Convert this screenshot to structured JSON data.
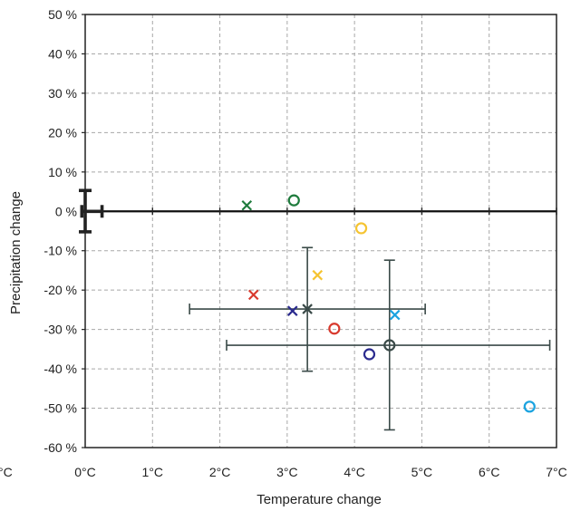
{
  "chart_data": {
    "type": "scatter",
    "title": "",
    "xlabel": "Temperature change",
    "ylabel": "Precipitation change",
    "xlim": [
      0,
      7
    ],
    "ylim": [
      -60,
      50
    ],
    "x_ticks": [
      0,
      1,
      2,
      3,
      4,
      5,
      6,
      7
    ],
    "x_tick_labels": [
      "0°C",
      "1°C",
      "2°C",
      "3°C",
      "4°C",
      "5°C",
      "6°C",
      "7°C"
    ],
    "y_ticks": [
      50,
      40,
      30,
      20,
      10,
      0,
      -10,
      -20,
      -30,
      -40,
      -50,
      -60
    ],
    "y_tick_labels": [
      "50 %",
      "40 %",
      "30 %",
      "20 %",
      "10 %",
      "0 %",
      "-10 %",
      "-20 %",
      "-30 %",
      "-40 %",
      "-50 %",
      "-60 %"
    ],
    "stray_left_label": "°C",
    "grid": true,
    "legend": "none",
    "points": [
      {
        "x": 2.4,
        "y": 1.5,
        "marker": "x",
        "color": "#1e7b3c"
      },
      {
        "x": 3.1,
        "y": 2.8,
        "marker": "o",
        "color": "#1e7b3c"
      },
      {
        "x": 4.1,
        "y": -4.3,
        "marker": "o",
        "color": "#f5c431"
      },
      {
        "x": 3.45,
        "y": -16.2,
        "marker": "x",
        "color": "#f5c431"
      },
      {
        "x": 2.5,
        "y": -21.2,
        "marker": "x",
        "color": "#d83a2e"
      },
      {
        "x": 3.7,
        "y": -29.8,
        "marker": "o",
        "color": "#d83a2e"
      },
      {
        "x": 3.08,
        "y": -25.3,
        "marker": "x",
        "color": "#2b2b8f"
      },
      {
        "x": 4.22,
        "y": -36.3,
        "marker": "o",
        "color": "#2b2b8f"
      },
      {
        "x": 4.6,
        "y": -26.3,
        "marker": "x",
        "color": "#1ba3e0"
      },
      {
        "x": 6.6,
        "y": -49.6,
        "marker": "o",
        "color": "#1ba3e0"
      }
    ],
    "error_bars": [
      {
        "x": 3.3,
        "y": -24.8,
        "marker": "x",
        "color": "#3a4a48",
        "x_range": [
          1.55,
          5.05
        ],
        "y_range": [
          -40.6,
          -9.2
        ]
      },
      {
        "x": 4.52,
        "y": -34.0,
        "marker": "o",
        "color": "#3a4a48",
        "x_range": [
          2.1,
          6.9
        ],
        "y_range": [
          -55.5,
          -12.4
        ]
      }
    ],
    "reference_cross": {
      "x": 0,
      "y": 0,
      "color": "#222222",
      "x_range": [
        -0.05,
        0.25
      ],
      "y_range": [
        -5.2,
        5.3
      ]
    }
  }
}
